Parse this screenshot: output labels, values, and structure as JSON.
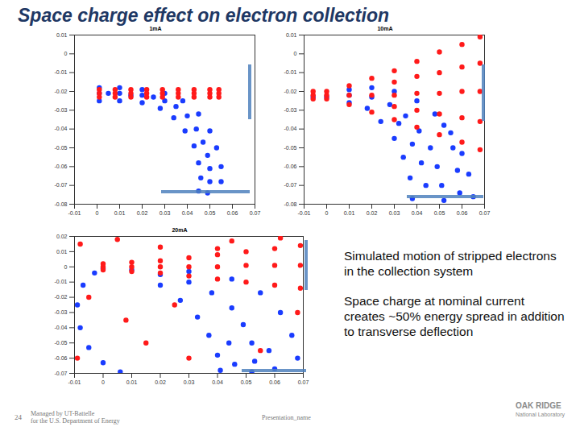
{
  "title": "Space charge effect on electron collection",
  "chart_data": [
    {
      "type": "scatter",
      "title": "1mA",
      "xlim": [
        -0.01,
        0.07
      ],
      "ylim": [
        -0.08,
        0.01
      ],
      "xticks": [
        -0.01,
        0,
        0.01,
        0.02,
        0.03,
        0.04,
        0.05,
        0.06,
        0.07
      ],
      "yticks": [
        -0.08,
        -0.07,
        -0.06,
        -0.05,
        -0.04,
        -0.03,
        -0.02,
        -0.01,
        0,
        0.01
      ],
      "series": [
        {
          "color": "#1a3cff",
          "x": [
            0.001,
            0.005,
            0.01,
            0.015,
            0.02,
            0.025,
            0.03,
            0.035,
            0.04,
            0.044,
            0.047,
            0.049,
            0.05,
            0.05,
            0.049,
            0.001,
            0.01,
            0.02,
            0.03,
            0.038,
            0.045,
            0.05,
            0.053,
            0.055,
            0.055,
            0.001,
            0.01,
            0.02,
            0.028,
            0.034,
            0.039,
            0.043,
            0.045,
            0.046,
            0.045
          ],
          "values": [
            -0.021,
            -0.021,
            -0.021,
            -0.022,
            -0.022,
            -0.023,
            -0.025,
            -0.028,
            -0.033,
            -0.04,
            -0.047,
            -0.054,
            -0.061,
            -0.068,
            -0.074,
            -0.018,
            -0.018,
            -0.019,
            -0.021,
            -0.025,
            -0.032,
            -0.041,
            -0.05,
            -0.06,
            -0.068,
            -0.025,
            -0.025,
            -0.026,
            -0.029,
            -0.034,
            -0.041,
            -0.049,
            -0.058,
            -0.066,
            -0.073
          ]
        },
        {
          "color": "#ff1a1a",
          "x": [
            0.001,
            0.008,
            0.015,
            0.022,
            0.029,
            0.036,
            0.043,
            0.05,
            0.054,
            0.001,
            0.008,
            0.015,
            0.022,
            0.029,
            0.036,
            0.043,
            0.05,
            0.054,
            0.001,
            0.008,
            0.015,
            0.022,
            0.029,
            0.036,
            0.043,
            0.05,
            0.054
          ],
          "values": [
            -0.019,
            -0.019,
            -0.019,
            -0.019,
            -0.019,
            -0.019,
            -0.019,
            -0.019,
            -0.019,
            -0.021,
            -0.021,
            -0.021,
            -0.021,
            -0.021,
            -0.021,
            -0.021,
            -0.021,
            -0.021,
            -0.023,
            -0.023,
            -0.023,
            -0.023,
            -0.023,
            -0.023,
            -0.023,
            -0.023,
            -0.023
          ]
        }
      ]
    },
    {
      "type": "scatter",
      "title": "10mA",
      "xlim": [
        -0.01,
        0.07
      ],
      "ylim": [
        -0.08,
        0.01
      ],
      "xticks": [
        -0.01,
        0,
        0.01,
        0.02,
        0.03,
        0.04,
        0.05,
        0.06,
        0.07
      ],
      "yticks": [
        -0.08,
        -0.07,
        -0.06,
        -0.05,
        -0.04,
        -0.03,
        -0.02,
        -0.01,
        0,
        0.01
      ],
      "series": [
        {
          "color": "#1a3cff",
          "x": [
            -0.006,
            0,
            0.01,
            0.02,
            0.028,
            0.035,
            0.041,
            0.046,
            0.049,
            0.051,
            0.052,
            0.01,
            0.02,
            0.03,
            0.04,
            0.048,
            0.055,
            0.06,
            0.063,
            0.065,
            0.01,
            0.018,
            0.024,
            0.03,
            0.034,
            0.037,
            0.038,
            0.052,
            0.056,
            0.058,
            0.059,
            0.032,
            0.038,
            0.042,
            0.044
          ],
          "values": [
            -0.023,
            -0.023,
            -0.022,
            -0.023,
            -0.027,
            -0.033,
            -0.041,
            -0.05,
            -0.06,
            -0.07,
            -0.078,
            -0.019,
            -0.018,
            -0.02,
            -0.025,
            -0.032,
            -0.042,
            -0.053,
            -0.064,
            -0.076,
            -0.026,
            -0.029,
            -0.036,
            -0.045,
            -0.055,
            -0.066,
            -0.077,
            -0.038,
            -0.05,
            -0.062,
            -0.074,
            -0.037,
            -0.048,
            -0.058,
            -0.07
          ]
        },
        {
          "color": "#ff1a1a",
          "x": [
            -0.006,
            0,
            0.01,
            0.02,
            0.03,
            0.04,
            0.05,
            0.06,
            0.068,
            -0.006,
            0,
            0.01,
            0.02,
            0.03,
            0.04,
            0.05,
            0.06,
            0.068,
            -0.006,
            0,
            0.01,
            0.02,
            0.03,
            0.04,
            0.05,
            0.06,
            0.068,
            0.03,
            0.04,
            0.05,
            0.06,
            0.068,
            0.03,
            0.04,
            0.05,
            0.06,
            0.068
          ],
          "values": [
            -0.02,
            -0.02,
            -0.017,
            -0.013,
            -0.009,
            -0.004,
            0.001,
            0.005,
            0.009,
            -0.022,
            -0.022,
            -0.022,
            -0.022,
            -0.022,
            -0.021,
            -0.021,
            -0.02,
            -0.02,
            -0.024,
            -0.024,
            -0.027,
            -0.031,
            -0.035,
            -0.039,
            -0.043,
            -0.047,
            -0.051,
            -0.015,
            -0.012,
            -0.01,
            -0.007,
            -0.005,
            -0.028,
            -0.03,
            -0.032,
            -0.034,
            -0.036
          ]
        }
      ]
    },
    {
      "type": "scatter",
      "title": "20mA",
      "xlim": [
        -0.01,
        0.07
      ],
      "ylim": [
        -0.07,
        0.02
      ],
      "xticks": [
        -0.01,
        0,
        0.01,
        0.02,
        0.03,
        0.04,
        0.05,
        0.06,
        0.07
      ],
      "yticks": [
        -0.07,
        -0.06,
        -0.05,
        -0.04,
        -0.03,
        -0.02,
        -0.01,
        0,
        0.01,
        0.02
      ],
      "series": [
        {
          "color": "#1a3cff",
          "x": [
            0,
            0.01,
            0.02,
            0.03,
            0.038,
            0.045,
            0.049,
            0.052,
            0.053,
            0.052,
            0.03,
            0.045,
            0.055,
            0.062,
            0.066,
            0.068,
            0.02,
            0.027,
            0.033,
            0.037,
            0.04,
            0.041,
            -0.003,
            -0.007,
            -0.009,
            -0.008,
            -0.005,
            0,
            0.006,
            0.058,
            0.06,
            0.046,
            0.044
          ],
          "values": [
            -0.001,
            -0.002,
            -0.005,
            -0.01,
            -0.017,
            -0.027,
            -0.038,
            -0.05,
            -0.062,
            -0.069,
            -0.003,
            -0.008,
            -0.017,
            -0.03,
            -0.045,
            -0.06,
            -0.012,
            -0.022,
            -0.033,
            -0.045,
            -0.058,
            -0.068,
            -0.004,
            -0.012,
            -0.025,
            -0.04,
            -0.053,
            -0.063,
            -0.069,
            -0.055,
            -0.067,
            -0.064,
            -0.05
          ]
        },
        {
          "color": "#ff1a1a",
          "x": [
            0,
            0.01,
            0.02,
            0.03,
            0.04,
            0.05,
            0.06,
            0.069,
            0,
            0.01,
            0.02,
            0.03,
            0.04,
            0.05,
            0.06,
            0.069,
            0,
            0.01,
            0.02,
            0.03,
            0.04,
            0.05,
            0.06,
            0.069,
            -0.008,
            0.005,
            0.02,
            0.045,
            0.062,
            -0.005,
            0.008,
            0.015,
            0.03,
            0.055,
            0.068,
            -0.009,
            0.04,
            0.025
          ],
          "values": [
            0,
            0,
            0,
            0,
            0,
            0.001,
            0.001,
            0.001,
            0.002,
            0.003,
            0.004,
            0.006,
            0.008,
            0.01,
            0.012,
            0.014,
            -0.002,
            -0.003,
            -0.004,
            -0.006,
            -0.008,
            -0.01,
            -0.012,
            -0.014,
            0.015,
            0.018,
            0.013,
            0.017,
            0.019,
            -0.02,
            -0.035,
            -0.05,
            -0.06,
            -0.055,
            -0.03,
            -0.06,
            0.012,
            -0.025
          ]
        }
      ]
    }
  ],
  "notes": [
    "Simulated motion of stripped electrons in the collection system",
    "Space charge at nominal current creates ~50% energy spread in addition to transverse deflection"
  ],
  "footer": {
    "page": "24",
    "lines": [
      "Managed by UT-Battelle",
      "for the U.S. Department of Energy"
    ],
    "presentation": "Presentation_name",
    "logo": [
      "OAK RIDGE",
      "National Laboratory"
    ]
  }
}
